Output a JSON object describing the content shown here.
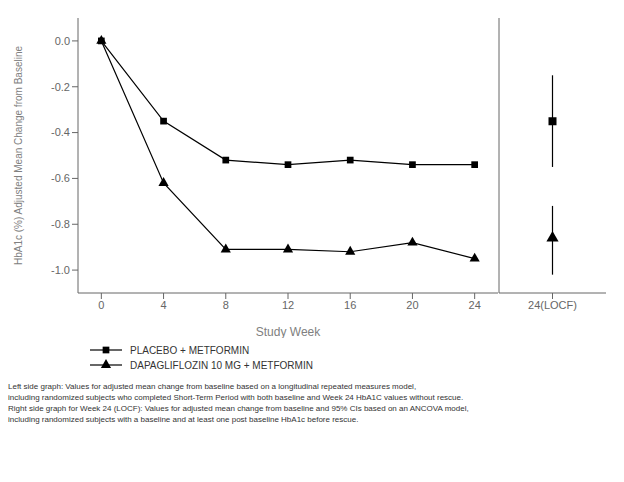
{
  "chart_data": [
    {
      "type": "line",
      "x_label": "Study Week",
      "y_label": "HbA1c (%) Adjusted Mean Change from Baseline",
      "x": [
        0,
        4,
        8,
        12,
        16,
        20,
        24
      ],
      "xlim": [
        -1.5,
        25.5
      ],
      "xticks": [
        0,
        4,
        8,
        12,
        16,
        20,
        24
      ],
      "ylim": [
        -1.1,
        0.1
      ],
      "yticks": [
        {
          "value": 0.0,
          "label": "0.0"
        },
        -0.2,
        -0.4,
        -0.6,
        -0.8,
        {
          "value": -1.0,
          "label": "-1.0"
        }
      ],
      "legend": "bottom",
      "series": [
        {
          "name": "PLACEBO + METFORMIN",
          "color": "#000000",
          "marker": "square",
          "values": [
            0.0,
            -0.35,
            -0.52,
            -0.54,
            -0.52,
            -0.54,
            -0.54
          ]
        },
        {
          "name": "DAPAGLIFLOZIN 10 MG + METFORMIN",
          "color": "#000000",
          "marker": "triangle",
          "values": [
            0.0,
            -0.62,
            -0.91,
            -0.91,
            -0.92,
            -0.88,
            -0.95
          ]
        }
      ],
      "annotations": [
        "Left side graph: Values for adjusted mean change from baseline based on a longitudinal repeated measures model,",
        "including randomized subjects who completed Short-Term Period with both baseline and Week 24 HbA1C values without rescue.",
        "Right side graph for Week 24 (LOCF): Values for adjusted mean change from baseline and 95% CIs based on an ANCOVA model,",
        "including randomized subjects with a baseline and at least one post baseline HbA1c before rescue."
      ]
    },
    {
      "type": "scatter",
      "categories": [
        "24(LOCF)"
      ],
      "ylim": [
        -1.1,
        0.1
      ],
      "yticks": [
        {
          "value": 0.0,
          "label": "0.0"
        },
        -0.2,
        -0.4,
        -0.6,
        -0.8,
        {
          "value": -1.0,
          "label": "-1.0"
        }
      ],
      "tick_labels": "x",
      "series": [
        {
          "color": "#000000",
          "marker": "square",
          "values": [
            -0.35
          ],
          "ci_lower": [
            -0.55
          ],
          "ci_upper": [
            -0.15
          ]
        },
        {
          "color": "#000000",
          "marker": "triangle",
          "values": [
            -0.86
          ],
          "ci_lower": [
            -1.02
          ],
          "ci_upper": [
            -0.72
          ]
        }
      ]
    }
  ]
}
